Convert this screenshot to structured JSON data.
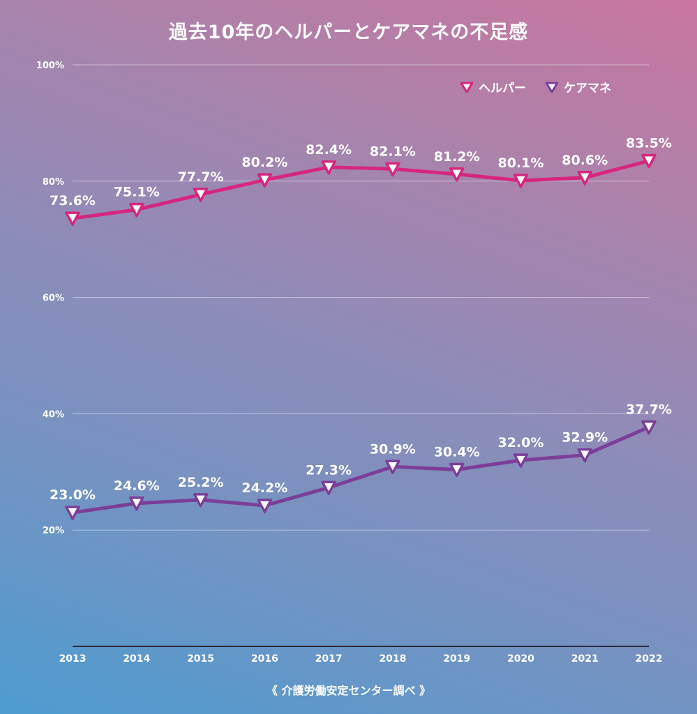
{
  "title": "過去10年のヘルパーとケアマネの不足感",
  "source": "《 介護労働安定センター調べ 》",
  "colors": {
    "helper": "#d6267f",
    "caremanager": "#7b3f99",
    "text": "#ffffff",
    "grid": "#ffffff"
  },
  "chart_data": {
    "type": "line",
    "title": "過去10年のヘルパーとケアマネの不足感",
    "categories": [
      "2013",
      "2014",
      "2015",
      "2016",
      "2017",
      "2018",
      "2019",
      "2020",
      "2021",
      "2022"
    ],
    "ylim": [
      0,
      100
    ],
    "yticks": [
      20,
      40,
      60,
      80,
      100
    ],
    "ytick_labels": [
      "20%",
      "40%",
      "60%",
      "80%",
      "100%"
    ],
    "grid": true,
    "legend": "top-right",
    "series": [
      {
        "name": "ヘルパー",
        "color": "#d6267f",
        "values": [
          73.6,
          75.1,
          77.7,
          80.2,
          82.4,
          82.1,
          81.2,
          80.1,
          80.6,
          83.5
        ],
        "labels": [
          "73.6%",
          "75.1%",
          "77.7%",
          "80.2%",
          "82.4%",
          "82.1%",
          "81.2%",
          "80.1%",
          "80.6%",
          "83.5%"
        ]
      },
      {
        "name": "ケアマネ",
        "color": "#7b3f99",
        "values": [
          23.0,
          24.6,
          25.2,
          24.2,
          27.3,
          30.9,
          30.4,
          32.0,
          32.9,
          37.7
        ],
        "labels": [
          "23.0%",
          "24.6%",
          "25.2%",
          "24.2%",
          "27.3%",
          "30.9%",
          "30.4%",
          "32.0%",
          "32.9%",
          "37.7%"
        ]
      }
    ]
  }
}
